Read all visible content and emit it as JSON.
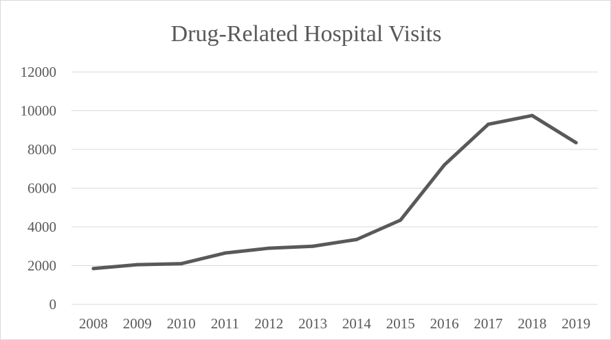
{
  "chart_data": {
    "type": "line",
    "title": "Drug-Related Hospital Visits",
    "xlabel": "",
    "ylabel": "",
    "categories": [
      "2008",
      "2009",
      "2010",
      "2011",
      "2012",
      "2013",
      "2014",
      "2015",
      "2016",
      "2017",
      "2018",
      "2019"
    ],
    "series": [
      {
        "values": [
          1850,
          2050,
          2100,
          2650,
          2900,
          3000,
          3350,
          4350,
          7200,
          9300,
          9750,
          8350
        ]
      }
    ],
    "ylim": [
      0,
      12000
    ],
    "yticks": [
      "0",
      "2000",
      "4000",
      "6000",
      "8000",
      "10000",
      "12000"
    ],
    "grid": true,
    "legend": "none",
    "colors": {
      "line": "#595959",
      "grid": "#d9d9d9",
      "text": "#595959"
    }
  }
}
